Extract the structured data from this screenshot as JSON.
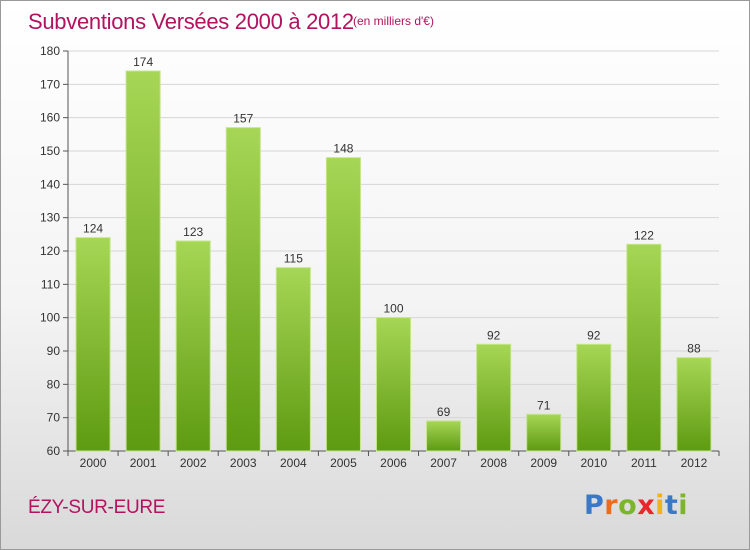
{
  "title": "Subventions Versées 2000 à 2012",
  "unit_note": "(en milliers d'€)",
  "location": "ÉZY-SUR-EURE",
  "logo": {
    "text": "Proxiti",
    "letters": [
      {
        "ch": "P",
        "color": "#3a78c8"
      },
      {
        "ch": "r",
        "color": "#ee6a1d"
      },
      {
        "ch": "o",
        "color": "#7cb52a"
      },
      {
        "ch": "x",
        "color": "#e8262b"
      },
      {
        "ch": "i",
        "color": "#f2b21a"
      },
      {
        "ch": "t",
        "color": "#3a78c8"
      },
      {
        "ch": "i",
        "color": "#7cb52a"
      }
    ]
  },
  "colors": {
    "bar_top": "#a6d655",
    "bar_bottom": "#5e9a12",
    "bar_edge": "#c3e68a",
    "title": "#b3125f",
    "grid": "#d6d6d6"
  },
  "chart_data": {
    "type": "bar",
    "title": "Subventions Versées 2000 à 2012",
    "categories": [
      "2000",
      "2001",
      "2002",
      "2003",
      "2004",
      "2005",
      "2006",
      "2007",
      "2008",
      "2009",
      "2010",
      "2011",
      "2012"
    ],
    "values": [
      124,
      174,
      123,
      157,
      115,
      148,
      100,
      69,
      92,
      71,
      92,
      122,
      88
    ],
    "ylim": [
      60,
      180
    ],
    "yticks": [
      60,
      70,
      80,
      90,
      100,
      110,
      120,
      130,
      140,
      150,
      160,
      170,
      180
    ],
    "xlabel": "",
    "ylabel": "",
    "grid": true,
    "legend": "none"
  }
}
